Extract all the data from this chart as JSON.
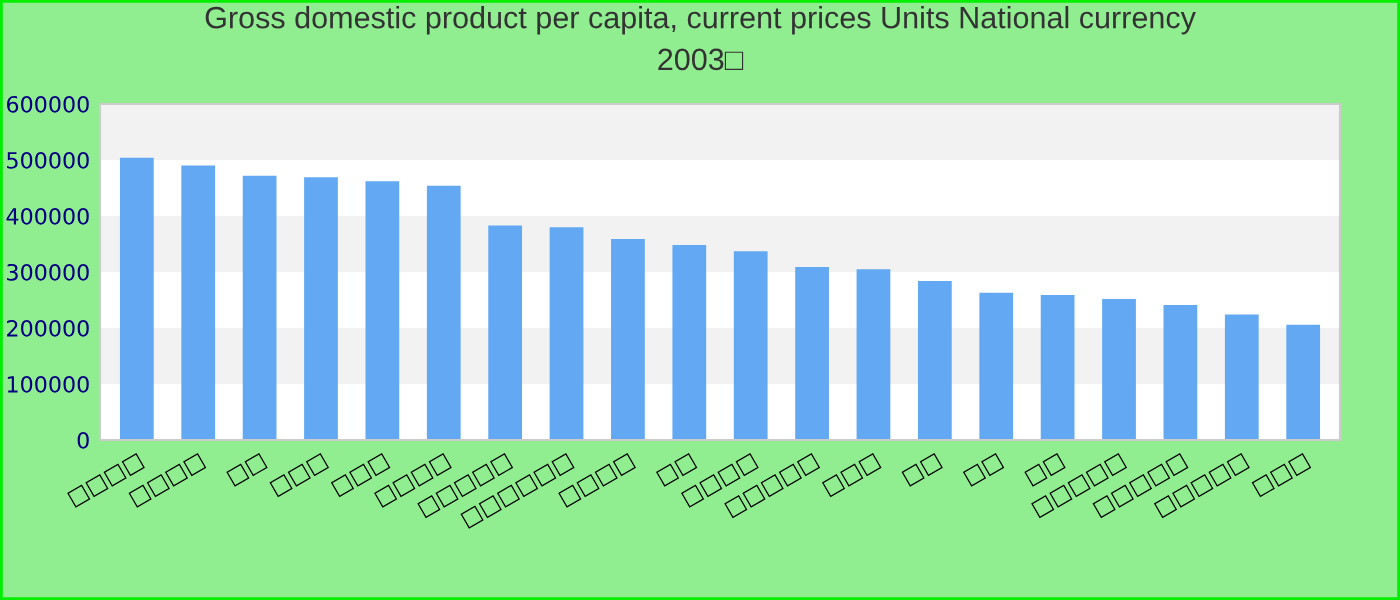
{
  "chart_data": {
    "type": "bar",
    "title": "Gross domestic product per capita, current prices Units National currency\n2003□",
    "categories": [
      "□□□□",
      "□□□□",
      "□□",
      "□□□",
      "□□□",
      "□□□□",
      "□□□□□",
      "□□□□□□",
      "□□□□",
      "□□",
      "□□□□",
      "□□□□□",
      "□□□",
      "□□",
      "□□",
      "□□",
      "□□□□□",
      "□□□□□",
      "□□□□□",
      "□□□"
    ],
    "values": [
      504000,
      490000,
      472000,
      469000,
      462000,
      454000,
      383000,
      380000,
      359000,
      348000,
      337000,
      309000,
      305000,
      284000,
      263000,
      259000,
      252000,
      241000,
      224000,
      206000
    ],
    "color": "#62a8f2",
    "ylim": [
      0,
      600000
    ],
    "yticks": [
      0,
      100000,
      200000,
      300000,
      400000,
      500000,
      600000
    ]
  }
}
